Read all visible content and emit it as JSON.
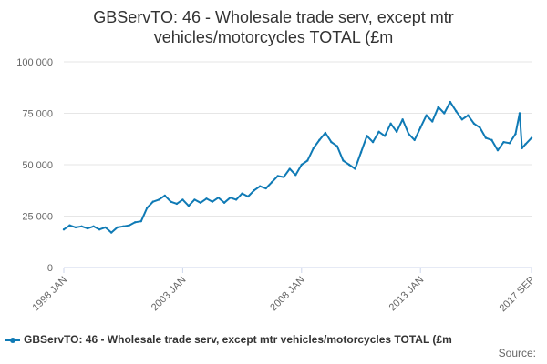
{
  "chart_data": {
    "type": "line",
    "title_line1": "GBServTO: 46 - Wholesale trade serv, except mtr",
    "title_line2": "vehicles/motorcycles TOTAL (£m",
    "xlabel": "",
    "ylabel": "",
    "ylim": [
      0,
      100000
    ],
    "y_ticks": [
      0,
      25000,
      50000,
      75000,
      100000
    ],
    "y_tick_labels": [
      "0",
      "25 000",
      "50 000",
      "75 000",
      "100 000"
    ],
    "x_range": [
      1998.0,
      2017.67
    ],
    "x_ticks": [
      1998.0,
      2003.0,
      2008.0,
      2013.0,
      2017.67
    ],
    "x_tick_labels": [
      "1998 JAN",
      "2003 JAN",
      "2008 JAN",
      "2013 JAN",
      "2017 SEP"
    ],
    "series": [
      {
        "name": "GBServTO: 46 - Wholesale trade serv, except mtr vehicles/motorcycles TOTAL (£m",
        "color": "#0f7ab5",
        "points": [
          [
            1998.0,
            18500
          ],
          [
            1998.25,
            20500
          ],
          [
            1998.5,
            19500
          ],
          [
            1998.75,
            20000
          ],
          [
            1999.0,
            19000
          ],
          [
            1999.25,
            20000
          ],
          [
            1999.5,
            18500
          ],
          [
            1999.75,
            19500
          ],
          [
            2000.0,
            17000
          ],
          [
            2000.25,
            19500
          ],
          [
            2000.5,
            20000
          ],
          [
            2000.75,
            20500
          ],
          [
            2001.0,
            22000
          ],
          [
            2001.25,
            22500
          ],
          [
            2001.5,
            29000
          ],
          [
            2001.75,
            32000
          ],
          [
            2002.0,
            33000
          ],
          [
            2002.25,
            35000
          ],
          [
            2002.5,
            32000
          ],
          [
            2002.75,
            31000
          ],
          [
            2003.0,
            33000
          ],
          [
            2003.25,
            30000
          ],
          [
            2003.5,
            33000
          ],
          [
            2003.75,
            31500
          ],
          [
            2004.0,
            33500
          ],
          [
            2004.25,
            32000
          ],
          [
            2004.5,
            34000
          ],
          [
            2004.75,
            31500
          ],
          [
            2005.0,
            34000
          ],
          [
            2005.25,
            33000
          ],
          [
            2005.5,
            36000
          ],
          [
            2005.75,
            34500
          ],
          [
            2006.0,
            37500
          ],
          [
            2006.25,
            39500
          ],
          [
            2006.5,
            38500
          ],
          [
            2006.75,
            41500
          ],
          [
            2007.0,
            44500
          ],
          [
            2007.25,
            44000
          ],
          [
            2007.5,
            48000
          ],
          [
            2007.75,
            45000
          ],
          [
            2008.0,
            50000
          ],
          [
            2008.25,
            52000
          ],
          [
            2008.5,
            58000
          ],
          [
            2008.75,
            62000
          ],
          [
            2009.0,
            65500
          ],
          [
            2009.25,
            61000
          ],
          [
            2009.5,
            59000
          ],
          [
            2009.75,
            52000
          ],
          [
            2010.0,
            50000
          ],
          [
            2010.25,
            48000
          ],
          [
            2010.5,
            56000
          ],
          [
            2010.75,
            64000
          ],
          [
            2011.0,
            61000
          ],
          [
            2011.25,
            66000
          ],
          [
            2011.5,
            64000
          ],
          [
            2011.75,
            70000
          ],
          [
            2012.0,
            66000
          ],
          [
            2012.25,
            72000
          ],
          [
            2012.5,
            65000
          ],
          [
            2012.75,
            62000
          ],
          [
            2013.0,
            68000
          ],
          [
            2013.25,
            74000
          ],
          [
            2013.5,
            71000
          ],
          [
            2013.75,
            78000
          ],
          [
            2014.0,
            75000
          ],
          [
            2014.25,
            80500
          ],
          [
            2014.5,
            76000
          ],
          [
            2014.75,
            72000
          ],
          [
            2015.0,
            74000
          ],
          [
            2015.25,
            70000
          ],
          [
            2015.5,
            68000
          ],
          [
            2015.75,
            63000
          ],
          [
            2016.0,
            62000
          ],
          [
            2016.25,
            57000
          ],
          [
            2016.5,
            61000
          ],
          [
            2016.75,
            60500
          ],
          [
            2017.0,
            65000
          ],
          [
            2017.17,
            75000
          ],
          [
            2017.27,
            58000
          ],
          [
            2017.42,
            60000
          ],
          [
            2017.67,
            63000
          ]
        ]
      }
    ],
    "legend_position": "bottom-left"
  },
  "legend_label": "GBServTO: 46 - Wholesale trade serv, except mtr vehicles/motorcycles TOTAL (£m",
  "source_label": "Source:"
}
